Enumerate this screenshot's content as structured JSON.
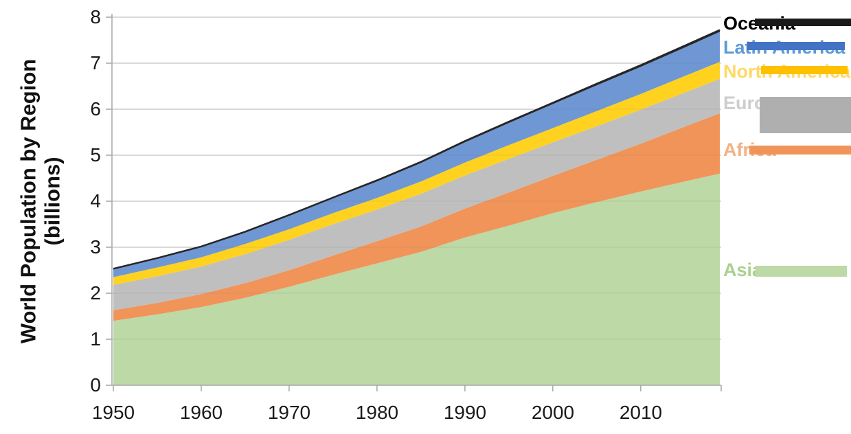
{
  "chart_data": {
    "type": "area",
    "stacked": true,
    "ylabel": "World Population by Region (billions)",
    "ylabel_lines": [
      "World Population by Region",
      "(billions)"
    ],
    "xlabel": "",
    "ylim": [
      0,
      8
    ],
    "xlim": [
      1950,
      2019
    ],
    "yticks": [
      "8",
      "7",
      "6",
      "5",
      "4",
      "3",
      "2",
      "1",
      "0"
    ],
    "xticks": [
      "1950",
      "1960",
      "1970",
      "1980",
      "1990",
      "2000",
      "2010"
    ],
    "grid": "horizontal",
    "legend_position": "right",
    "x": [
      1950,
      1955,
      1960,
      1965,
      1970,
      1975,
      1980,
      1985,
      1990,
      1995,
      2000,
      2005,
      2010,
      2015,
      2019
    ],
    "series": [
      {
        "name": "Asia",
        "color": "#BDD9A6",
        "swatch_color": "#BDD9A6",
        "label_color": "#A9D18E",
        "values": [
          1.4,
          1.54,
          1.7,
          1.9,
          2.14,
          2.4,
          2.65,
          2.9,
          3.21,
          3.47,
          3.74,
          3.98,
          4.21,
          4.43,
          4.6
        ]
      },
      {
        "name": "Africa",
        "color": "#F0945A",
        "swatch_color": "#F0945A",
        "label_color": "#F4B183",
        "values": [
          0.23,
          0.25,
          0.28,
          0.32,
          0.36,
          0.42,
          0.48,
          0.55,
          0.63,
          0.72,
          0.81,
          0.92,
          1.04,
          1.19,
          1.31
        ]
      },
      {
        "name": "Europe",
        "color": "#BFBFBF",
        "swatch_color": "#AFAFAF",
        "label_color": "#CFCDCD",
        "values": [
          0.55,
          0.58,
          0.6,
          0.63,
          0.66,
          0.68,
          0.69,
          0.71,
          0.72,
          0.73,
          0.73,
          0.73,
          0.74,
          0.74,
          0.75
        ]
      },
      {
        "name": "North America",
        "color": "#FFD220",
        "swatch_color": "#FFC000",
        "label_color": "#FFD966",
        "values": [
          0.17,
          0.19,
          0.2,
          0.22,
          0.23,
          0.24,
          0.25,
          0.27,
          0.28,
          0.3,
          0.31,
          0.33,
          0.34,
          0.36,
          0.37
        ]
      },
      {
        "name": "Latin America",
        "color": "#6F97D4",
        "swatch_color": "#4472C4",
        "label_color": "#5B9BD5",
        "values": [
          0.17,
          0.19,
          0.22,
          0.25,
          0.29,
          0.32,
          0.36,
          0.4,
          0.44,
          0.48,
          0.52,
          0.56,
          0.59,
          0.62,
          0.65
        ]
      },
      {
        "name": "Oceania",
        "color": "#262626",
        "swatch_color": "#1A1A1A",
        "label_color": "#000000",
        "values": [
          0.013,
          0.014,
          0.016,
          0.018,
          0.02,
          0.021,
          0.023,
          0.025,
          0.027,
          0.029,
          0.031,
          0.034,
          0.037,
          0.04,
          0.042
        ]
      }
    ],
    "top_line_color": "#262626",
    "gridline_color": "#D9D9D9",
    "axis_color": "#A6A6A6"
  }
}
